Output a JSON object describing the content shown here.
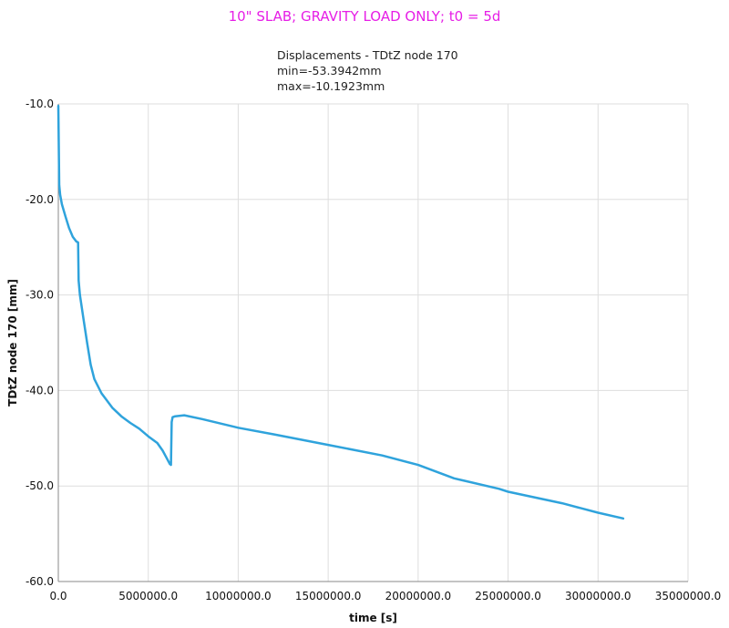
{
  "page_title": "10\" SLAB; GRAVITY LOAD ONLY; t0 = 5d",
  "chart_data": {
    "type": "line",
    "title": "Displacements - TDtZ node 170",
    "subtitle_lines": [
      "min=-53.3942mm",
      "max=-10.1923mm"
    ],
    "xlabel": "time [s]",
    "ylabel": "TDtZ node 170 [mm]",
    "xlim": [
      0,
      35000000
    ],
    "ylim": [
      -60,
      -10
    ],
    "x_ticks": [
      0,
      5000000,
      10000000,
      15000000,
      20000000,
      25000000,
      30000000,
      35000000
    ],
    "x_tick_labels": [
      "0.0",
      "5000000.0",
      "10000000.0",
      "15000000.0",
      "20000000.0",
      "25000000.0",
      "30000000.0",
      "35000000.0"
    ],
    "y_ticks": [
      -10,
      -20,
      -30,
      -40,
      -50,
      -60
    ],
    "y_tick_labels": [
      "-10.0",
      "-20.0",
      "-30.0",
      "-40.0",
      "-50.0",
      "-60.0"
    ],
    "grid": true,
    "line_color": "#2fa3dc",
    "series": [
      {
        "x": [
          0,
          50000,
          100000,
          200000,
          400000,
          600000,
          800000,
          1000000,
          1100000,
          1130000,
          1200000,
          1400000,
          1600000,
          1800000,
          2000000,
          2400000,
          3000000,
          3500000,
          4000000,
          4500000,
          5000000,
          5500000,
          5800000,
          6000000,
          6200000,
          6260000,
          6300000,
          6350000,
          6500000,
          7000000,
          8000000,
          10000000,
          12000000,
          15000000,
          18000000,
          20000000,
          22000000,
          24500000,
          25000000,
          28000000,
          30000000,
          31400000
        ],
        "y": [
          -10.2,
          -18.5,
          -19.5,
          -20.5,
          -21.8,
          -23.0,
          -23.9,
          -24.4,
          -24.5,
          -28.5,
          -30.0,
          -32.5,
          -35.0,
          -37.3,
          -38.8,
          -40.3,
          -41.8,
          -42.7,
          -43.4,
          -44.0,
          -44.8,
          -45.5,
          -46.3,
          -47.0,
          -47.7,
          -47.8,
          -43.3,
          -42.8,
          -42.7,
          -42.6,
          -43.0,
          -43.9,
          -44.6,
          -45.7,
          -46.8,
          -47.8,
          -49.2,
          -50.3,
          -50.6,
          -51.8,
          -52.8,
          -53.4
        ]
      }
    ]
  }
}
